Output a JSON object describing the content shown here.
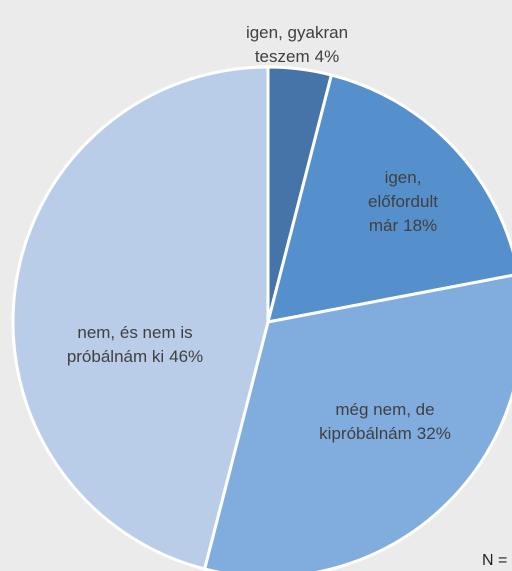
{
  "chart_data": {
    "type": "pie",
    "categories": [
      "igen, gyakran teszem",
      "igen, előfordult már",
      "még nem, de kipróbálnám",
      "nem, és nem is próbálnám ki"
    ],
    "values": [
      4,
      18,
      32,
      46
    ],
    "value_labels": [
      "4%",
      "18%",
      "32%",
      "46%"
    ],
    "colors": [
      "#4674a9",
      "#5590cc",
      "#80acde",
      "#b9cde9"
    ],
    "footnote": "N ="
  }
}
